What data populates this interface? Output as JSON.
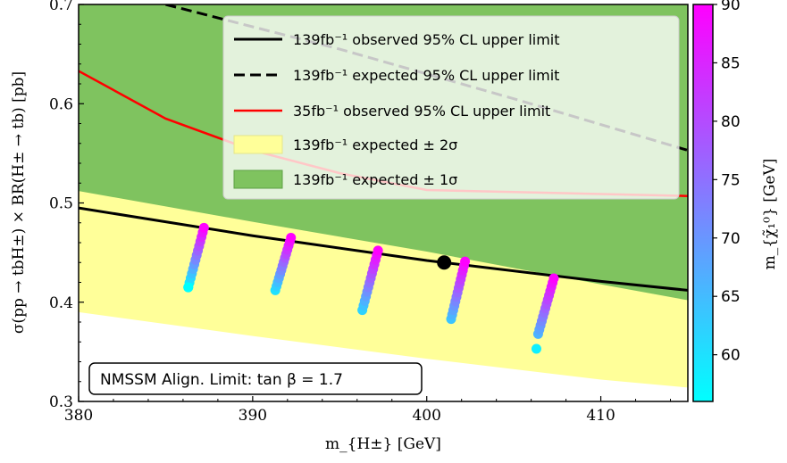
{
  "chart_data": {
    "type": "scatter",
    "xlabel": "m_{H±} [GeV]",
    "ylabel": "σ(pp → tbH±) × BR(H± → tb) [pb]",
    "xlim": [
      380,
      415
    ],
    "ylim": [
      0.3,
      0.7
    ],
    "xticks": [
      380,
      390,
      400,
      410
    ],
    "yticks": [
      0.3,
      0.4,
      0.5,
      0.6,
      0.7
    ],
    "xtick_labels": [
      "380",
      "390",
      "400",
      "410"
    ],
    "ytick_labels": [
      "0.3",
      "0.4",
      "0.5",
      "0.6",
      "0.7"
    ],
    "grid": false,
    "legend_position": "top-right",
    "annotation": "NMSSM Align. Limit: tan β = 1.7",
    "colorbar": {
      "label": "m_{χ̃₁⁰} [GeV]",
      "range": [
        56,
        90
      ],
      "ticks": [
        60,
        65,
        70,
        75,
        80,
        85,
        90
      ],
      "tick_labels": [
        "60",
        "65",
        "70",
        "75",
        "80",
        "85",
        "90"
      ],
      "color_low": "#00ffff",
      "color_high": "#ff00ff"
    },
    "legend": [
      {
        "label": "139fb⁻¹ observed 95% CL upper limit",
        "style": "solid",
        "color": "#000000"
      },
      {
        "label": "139fb⁻¹ expected 95% CL upper limit",
        "style": "dashed",
        "color": "#000000"
      },
      {
        "label": "35fb⁻¹ observed 95% CL upper limit",
        "style": "solid",
        "color": "#ff0000"
      },
      {
        "label": "139fb⁻¹ expected ± 2σ",
        "style": "patch",
        "color": "#ffff99"
      },
      {
        "label": "139fb⁻¹ expected ± 1σ",
        "style": "patch",
        "color": "#7fc35f"
      }
    ],
    "series": [
      {
        "name": "139fb⁻¹ observed 95% CL upper limit",
        "x": [
          380,
          390,
          400,
          410,
          415
        ],
        "y": [
          0.495,
          0.467,
          0.442,
          0.421,
          0.412
        ]
      },
      {
        "name": "139fb⁻¹ expected 95% CL upper limit",
        "x": [
          385,
          395,
          405,
          415
        ],
        "y": [
          0.7,
          0.655,
          0.605,
          0.553
        ]
      },
      {
        "name": "35fb⁻¹ observed 95% CL upper limit",
        "x": [
          380,
          385,
          390,
          395,
          400,
          405,
          410,
          415
        ],
        "y": [
          0.633,
          0.585,
          0.553,
          0.53,
          0.513,
          0.511,
          0.509,
          0.507
        ]
      },
      {
        "name": "139fb⁻¹ expected ± 1σ (lower)",
        "x": [
          380,
          390,
          400,
          410,
          415
        ],
        "y": [
          0.512,
          0.481,
          0.451,
          0.418,
          0.402
        ]
      },
      {
        "name": "139fb⁻¹ expected ± 2σ (lower)",
        "x": [
          380,
          390,
          400,
          410,
          415
        ],
        "y": [
          0.39,
          0.366,
          0.343,
          0.322,
          0.314
        ]
      }
    ],
    "highlight_point": {
      "x": 401,
      "y": 0.44
    },
    "scatter_columns": [
      {
        "x_bottom": 386.3,
        "x_top": 387.2,
        "y_bottom": 0.415,
        "y_top": 0.475,
        "c_bottom": 56,
        "c_top": 90,
        "isolated": {
          "x": 386.3,
          "y": 0.415,
          "c": 56
        }
      },
      {
        "x_bottom": 391.3,
        "x_top": 392.2,
        "y_bottom": 0.412,
        "y_top": 0.465,
        "c_bottom": 60,
        "c_top": 90
      },
      {
        "x_bottom": 396.3,
        "x_top": 397.2,
        "y_bottom": 0.392,
        "y_top": 0.452,
        "c_bottom": 62,
        "c_top": 90
      },
      {
        "x_bottom": 401.4,
        "x_top": 402.2,
        "y_bottom": 0.383,
        "y_top": 0.441,
        "c_bottom": 64,
        "c_top": 90
      },
      {
        "x_bottom": 406.4,
        "x_top": 407.3,
        "y_bottom": 0.368,
        "y_top": 0.424,
        "c_bottom": 66,
        "c_top": 90,
        "isolated": {
          "x": 406.3,
          "y": 0.353,
          "c": 58
        }
      }
    ]
  }
}
